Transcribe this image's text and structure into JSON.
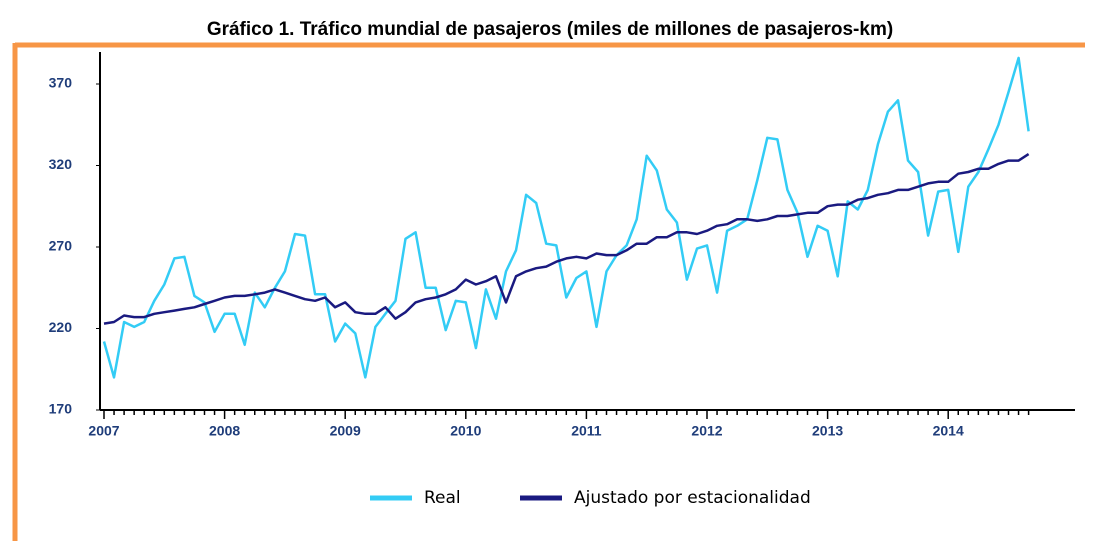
{
  "chart_data": {
    "type": "line",
    "title": "Gráfico 1. Tráfico mundial de pasajeros (miles de millones de pasajeros-km)",
    "categories": [
      "2007",
      null,
      null,
      null,
      null,
      null,
      null,
      null,
      null,
      null,
      null,
      null,
      "2008",
      null,
      null,
      null,
      null,
      null,
      null,
      null,
      null,
      null,
      null,
      null,
      "2009",
      null,
      null,
      null,
      null,
      null,
      null,
      null,
      null,
      null,
      null,
      null,
      "2010",
      null,
      null,
      null,
      null,
      null,
      null,
      null,
      null,
      null,
      null,
      null,
      "2011",
      null,
      null,
      null,
      null,
      null,
      null,
      null,
      null,
      null,
      null,
      null,
      "2012",
      null,
      null,
      null,
      null,
      null,
      null,
      null,
      null,
      null,
      null,
      null,
      "2013",
      null,
      null,
      null,
      null,
      null,
      null,
      null,
      null,
      null,
      null,
      null,
      "2014",
      null,
      null,
      null,
      null,
      null,
      null,
      null,
      null
    ],
    "series": [
      {
        "name": "Real",
        "color": "#33CCF5",
        "values": [
          212,
          190,
          224,
          221,
          224,
          237,
          247,
          263,
          264,
          240,
          236,
          218,
          229,
          229,
          210,
          242,
          233,
          245,
          255,
          278,
          277,
          241,
          241,
          212,
          223,
          217,
          190,
          221,
          229,
          237,
          275,
          279,
          245,
          245,
          219,
          237,
          236,
          208,
          244,
          226,
          255,
          268,
          302,
          297,
          272,
          271,
          239,
          251,
          255,
          221,
          255,
          265,
          271,
          287,
          326,
          317,
          293,
          285,
          250,
          269,
          271,
          242,
          280,
          283,
          287,
          311,
          337,
          336,
          305,
          291,
          264,
          283,
          280,
          252,
          298,
          293,
          305,
          333,
          353,
          360,
          323,
          316,
          277,
          304,
          305,
          267,
          307,
          316,
          330,
          345,
          365,
          386,
          341
        ]
      },
      {
        "name": "Ajustado por estacionalidad",
        "color": "#1A1A80",
        "values": [
          223,
          224,
          228,
          227,
          227,
          229,
          230,
          231,
          232,
          233,
          235,
          237,
          239,
          240,
          240,
          241,
          242,
          244,
          242,
          240,
          238,
          237,
          239,
          233,
          236,
          230,
          229,
          229,
          233,
          226,
          230,
          236,
          238,
          239,
          241,
          244,
          250,
          247,
          249,
          252,
          236,
          252,
          255,
          257,
          258,
          261,
          263,
          264,
          263,
          266,
          265,
          265,
          268,
          272,
          272,
          276,
          276,
          279,
          279,
          278,
          280,
          283,
          284,
          287,
          287,
          286,
          287,
          289,
          289,
          290,
          291,
          291,
          295,
          296,
          296,
          299,
          300,
          302,
          303,
          305,
          305,
          307,
          309,
          310,
          310,
          315,
          316,
          318,
          318,
          321,
          323,
          323,
          327
        ]
      }
    ],
    "ylim": [
      170,
      390
    ],
    "yticks": [
      170,
      220,
      270,
      320,
      370
    ]
  }
}
